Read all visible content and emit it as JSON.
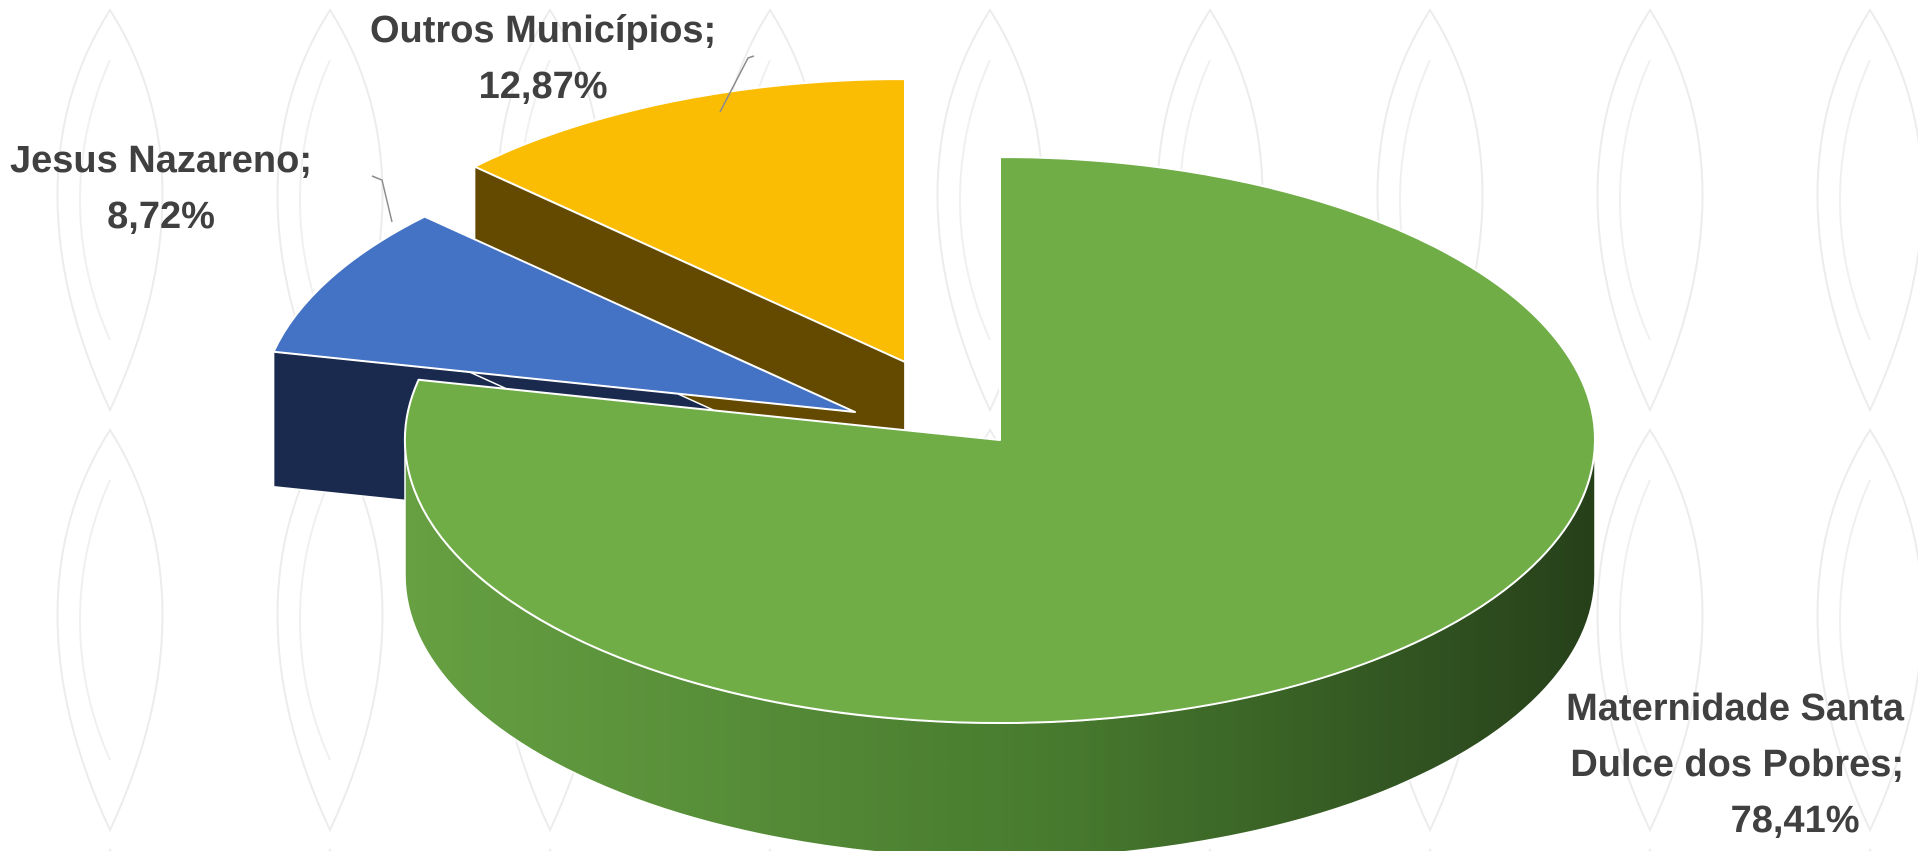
{
  "chart_data": {
    "type": "pie",
    "style": "3d-exploded",
    "title": "",
    "slices": [
      {
        "name": "Maternidade Santa Dulce dos Pobres",
        "value": 78.41,
        "label": [
          "Maternidade Santa",
          "Dulce dos Pobres;",
          "78,41%"
        ],
        "color": "#70AD47",
        "side_color": "#3D6426"
      },
      {
        "name": "Jesus Nazareno",
        "value": 8.72,
        "label": [
          "Jesus Nazareno;",
          "8,72%"
        ],
        "color": "#4472C4",
        "side_color": "#1A2A4E"
      },
      {
        "name": "Outros Municípios",
        "value": 12.87,
        "label": [
          "Outros Municípios;",
          "12,87%"
        ],
        "color": "#FBBC04",
        "side_color": "#634A00"
      }
    ]
  }
}
